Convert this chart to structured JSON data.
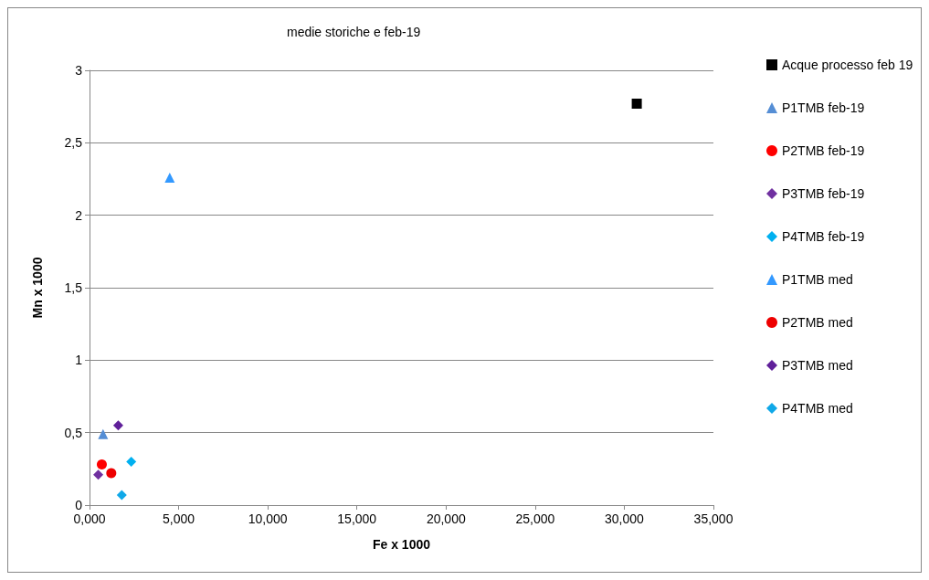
{
  "chart_data": {
    "type": "scatter",
    "title": "medie storiche e feb-19",
    "xlabel": "Fe x 1000",
    "ylabel": "Mn x 1000",
    "xlim": [
      0,
      35
    ],
    "xticks": [
      {
        "value": 0,
        "label": "0,000"
      },
      {
        "value": 5,
        "label": "5,000"
      },
      {
        "value": 10,
        "label": "10,000"
      },
      {
        "value": 15,
        "label": "15,000"
      },
      {
        "value": 20,
        "label": "20,000"
      },
      {
        "value": 25,
        "label": "25,000"
      },
      {
        "value": 30,
        "label": "30,000"
      },
      {
        "value": 35,
        "label": "35,000"
      }
    ],
    "ylim": [
      0,
      3
    ],
    "yticks": [
      0,
      {
        "value": 0.5,
        "label": "0,5"
      },
      1,
      {
        "value": 1.5,
        "label": "1,5"
      },
      2,
      {
        "value": 2.5,
        "label": "2,5"
      },
      3
    ],
    "grid": "y",
    "legend": "right",
    "series": [
      {
        "name": "Acque processo feb 19",
        "color": "#000000",
        "marker": "square",
        "x": [
          30.7
        ],
        "values": [
          2.77
        ]
      },
      {
        "name": "P1TMB feb-19",
        "color": "#558ed5",
        "marker": "triangle",
        "x": [
          0.76
        ],
        "values": [
          0.49
        ]
      },
      {
        "name": "P2TMB feb-19",
        "color": "#ff0000",
        "marker": "circle",
        "x": [
          0.69
        ],
        "values": [
          0.28
        ]
      },
      {
        "name": "P3TMB feb-19",
        "color": "#7030a0",
        "marker": "diamond",
        "x": [
          0.49
        ],
        "values": [
          0.21
        ]
      },
      {
        "name": "P4TMB feb-19",
        "color": "#00b0f0",
        "marker": "diamond",
        "x": [
          2.34
        ],
        "values": [
          0.3
        ]
      },
      {
        "name": "P1TMB med",
        "color": "#3399ff",
        "marker": "triangle",
        "x": [
          4.5
        ],
        "values": [
          2.26
        ]
      },
      {
        "name": "P2TMB med",
        "color": "#ee0000",
        "marker": "circle",
        "x": [
          1.22
        ],
        "values": [
          0.22
        ]
      },
      {
        "name": "P3TMB med",
        "color": "#60209a",
        "marker": "diamond",
        "x": [
          1.61
        ],
        "values": [
          0.55
        ]
      },
      {
        "name": "P4TMB med",
        "color": "#10a8e8",
        "marker": "diamond",
        "x": [
          1.81
        ],
        "values": [
          0.07
        ]
      }
    ]
  }
}
